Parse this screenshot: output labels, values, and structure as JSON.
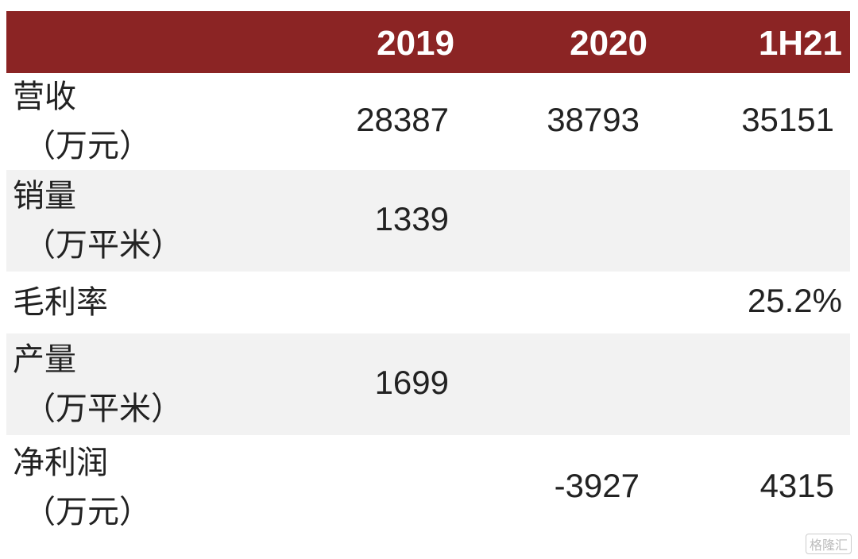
{
  "table": {
    "header": [
      "2019",
      "2020",
      "1H21"
    ],
    "rows": [
      {
        "label": [
          "营收",
          "（万元）"
        ],
        "values": [
          28387,
          38793,
          35151
        ]
      },
      {
        "label": [
          "销量",
          "（万平米）"
        ],
        "values": [
          1339,
          null,
          null
        ]
      },
      {
        "label": [
          "毛利率"
        ],
        "values": [
          null,
          null,
          "25.2%"
        ]
      },
      {
        "label": [
          "产量",
          "（万平米）"
        ],
        "values": [
          1699,
          null,
          null
        ]
      },
      {
        "label": [
          "净利润",
          "（万元）"
        ],
        "values": [
          null,
          -3927,
          4315
        ]
      }
    ]
  },
  "watermark": "格隆汇"
}
